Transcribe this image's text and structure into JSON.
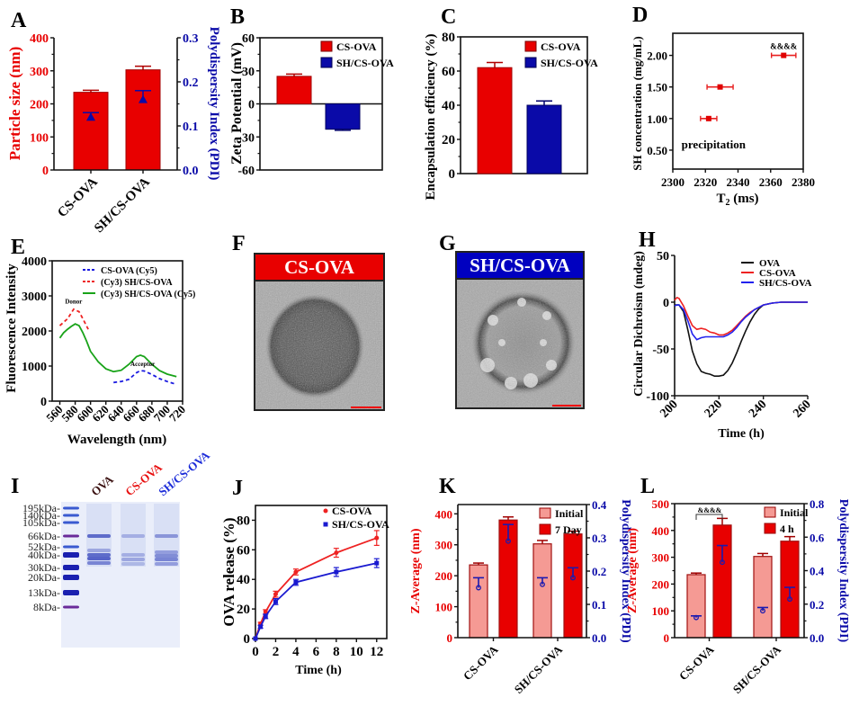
{
  "figure": {
    "panel_letters": [
      "A",
      "B",
      "C",
      "D",
      "E",
      "F",
      "G",
      "H",
      "I",
      "J",
      "K",
      "L"
    ]
  },
  "colors": {
    "red": "#e80000",
    "blue": "#0a0aa8",
    "light_red": "#f59a94",
    "dark_red_edge": "#9c0a0a",
    "green": "#19a319"
  },
  "chart_data": [
    {
      "id": "A",
      "type": "bar",
      "categories": [
        "CS-OVA",
        "SH/CS-OVA"
      ],
      "series": [
        {
          "name": "Particle size (nm)",
          "axis": "left",
          "values": [
            235,
            303
          ],
          "errors": [
            6,
            11
          ],
          "color": "#e80000"
        },
        {
          "name": "PDI",
          "axis": "right",
          "type": "marker",
          "values": [
            0.12,
            0.16
          ],
          "errors": [
            0.01,
            0.02
          ],
          "color": "#0a0aa8"
        }
      ],
      "ylabel": "Particle size (nm)",
      "ylim": [
        0,
        400
      ],
      "yticks": [
        0,
        100,
        200,
        300,
        400
      ],
      "y2label": "Polydispersity Index (PDI)",
      "y2lim": [
        0,
        0.3
      ],
      "y2ticks": [
        "0.0",
        "0.1",
        "0.2",
        "0.3"
      ]
    },
    {
      "id": "B",
      "type": "bar",
      "categories": [
        "CS-OVA",
        "SH/CS-OVA"
      ],
      "values": [
        25,
        -23
      ],
      "errors": [
        2,
        1
      ],
      "colors": [
        "#e80000",
        "#0a0aa8"
      ],
      "legend": [
        "CS-OVA",
        "SH/CS-OVA"
      ],
      "legend_position": "top-right",
      "ylabel": "Zeta Potential (mV)",
      "ylim": [
        -60,
        60
      ],
      "yticks": [
        -60,
        -30,
        0,
        30,
        60
      ]
    },
    {
      "id": "C",
      "type": "bar",
      "categories": [
        "CS-OVA",
        "SH/CS-OVA"
      ],
      "values": [
        62,
        40
      ],
      "errors": [
        3,
        2.5
      ],
      "colors": [
        "#e80000",
        "#0a0aa8"
      ],
      "legend": [
        "CS-OVA",
        "SH/CS-OVA"
      ],
      "legend_position": "top-right",
      "ylabel": "Encapsulation efficiency (%)",
      "ylim": [
        0,
        80
      ],
      "yticks": [
        0,
        20,
        40,
        60,
        80
      ]
    },
    {
      "id": "D",
      "type": "scatter",
      "points": [
        {
          "x": 2322,
          "y": 1.0,
          "xerr": 5
        },
        {
          "x": 2329,
          "y": 1.5,
          "xerr": 8
        },
        {
          "x": 2368,
          "y": 2.0,
          "xerr": 7.5
        }
      ],
      "annotations": [
        {
          "text": "&&&&",
          "x": 2368,
          "y": 2.1
        },
        {
          "text": "precipitation",
          "x": 2325,
          "y": 0.53
        }
      ],
      "xlabel": "T2 (ms)",
      "ylabel": "SH concentration (mg/mL)",
      "xlim": [
        2300,
        2380
      ],
      "xticks": [
        2300,
        2320,
        2340,
        2360,
        2380
      ],
      "ylim": [
        0.2,
        2.35
      ],
      "yticks": [
        "0.50",
        "1.00",
        "1.50",
        "2.00"
      ]
    },
    {
      "id": "E",
      "type": "line",
      "series": [
        {
          "name": "CS-OVA (Cy5)",
          "style": "dashed",
          "color": "#1a1ae0",
          "x": [
            630,
            640,
            650,
            660,
            665,
            670,
            680,
            690,
            700,
            710
          ],
          "y": [
            530,
            560,
            620,
            810,
            870,
            860,
            760,
            640,
            560,
            490
          ]
        },
        {
          "name": "(Cy3) SH/CS-OVA",
          "style": "dashed",
          "color": "#ee2222",
          "x": [
            560,
            570,
            578,
            585,
            590,
            597
          ],
          "y": [
            2150,
            2350,
            2620,
            2550,
            2350,
            2050
          ]
        },
        {
          "name": "(Cy3) SH/CS-OVA (Cy5)",
          "style": "solid",
          "color": "#19a319",
          "x": [
            560,
            565,
            570,
            575,
            580,
            585,
            590,
            595,
            600,
            610,
            620,
            630,
            640,
            650,
            660,
            665,
            670,
            680,
            690,
            700,
            712
          ],
          "y": [
            1800,
            1950,
            2050,
            2130,
            2200,
            2150,
            1950,
            1700,
            1420,
            1120,
            920,
            840,
            880,
            1050,
            1270,
            1310,
            1270,
            1050,
            870,
            770,
            700
          ]
        }
      ],
      "annotations": [
        {
          "text": "Donor",
          "x": 578,
          "y": 2780
        },
        {
          "text": "Acceptor",
          "x": 668,
          "y": 1000
        }
      ],
      "legend_position": "top-right",
      "xlabel": "Wavelength (nm)",
      "ylabel": "Fluorescence Intensity",
      "xlim": [
        550,
        720
      ],
      "xticks": [
        560,
        580,
        600,
        620,
        640,
        660,
        680,
        700,
        720
      ],
      "ylim": [
        0,
        4000
      ],
      "yticks": [
        0,
        1000,
        2000,
        3000,
        4000
      ]
    },
    {
      "id": "H",
      "type": "line",
      "series": [
        {
          "name": "OVA",
          "color": "#111111",
          "x": [
            200,
            202,
            204,
            206,
            208,
            210,
            212,
            214,
            216,
            218,
            220,
            222,
            224,
            226,
            228,
            230,
            232,
            234,
            236,
            238,
            240,
            244,
            248,
            252,
            256,
            260
          ],
          "y": [
            -3,
            -3,
            -10,
            -30,
            -52,
            -66,
            -74,
            -76,
            -77,
            -79,
            -79,
            -78,
            -73,
            -65,
            -54,
            -42,
            -31,
            -21,
            -13,
            -7,
            -3,
            -1,
            0,
            0,
            0,
            0
          ]
        },
        {
          "name": "CS-OVA",
          "color": "#ee2222",
          "x": [
            200,
            201,
            202,
            204,
            206,
            208,
            210,
            212,
            214,
            216,
            218,
            220,
            222,
            224,
            226,
            228,
            230,
            232,
            234,
            236,
            240,
            244,
            248,
            252,
            256,
            260
          ],
          "y": [
            2,
            5,
            4,
            -4,
            -15,
            -25,
            -29,
            -28,
            -29,
            -32,
            -33,
            -35,
            -35,
            -33,
            -30,
            -25,
            -20,
            -15,
            -11,
            -8,
            -3,
            -1,
            0,
            0,
            0,
            0
          ]
        },
        {
          "name": "SH/CS-OVA",
          "color": "#2222ee",
          "x": [
            200,
            201,
            202,
            204,
            206,
            208,
            210,
            212,
            214,
            216,
            218,
            220,
            222,
            224,
            226,
            228,
            230,
            232,
            234,
            236,
            240,
            244,
            248,
            252,
            256,
            260
          ],
          "y": [
            -4,
            -3,
            -3,
            -8,
            -20,
            -34,
            -40,
            -38,
            -37,
            -37,
            -37,
            -37,
            -37,
            -35,
            -32,
            -27,
            -21,
            -16,
            -12,
            -8,
            -3,
            -1,
            0,
            0,
            0,
            0
          ]
        }
      ],
      "legend_position": "top-right",
      "xlabel": "Time (h)",
      "ylabel": "Circular Dichroism (mdeg)",
      "xlim": [
        200,
        260
      ],
      "xticks": [
        200,
        220,
        240,
        260
      ],
      "ylim": [
        -100,
        50
      ],
      "yticks": [
        -100,
        -50,
        0,
        50
      ]
    },
    {
      "id": "J",
      "type": "line",
      "series": [
        {
          "name": "CS-OVA",
          "color": "#ee2222",
          "marker": "circle",
          "x": [
            0,
            0.5,
            1,
            2,
            4,
            8,
            12
          ],
          "y": [
            0,
            10,
            18,
            30,
            45,
            58,
            68
          ],
          "errors": [
            0,
            1,
            1.5,
            2,
            2,
            3,
            5
          ]
        },
        {
          "name": "SH/CS-OVA",
          "color": "#1a1ad0",
          "marker": "square",
          "x": [
            0,
            0.5,
            1,
            2,
            4,
            8,
            12
          ],
          "y": [
            0,
            8,
            15,
            25,
            38,
            45,
            51
          ],
          "errors": [
            0,
            1,
            1.5,
            2,
            2,
            3,
            3
          ]
        }
      ],
      "legend_position": "top-right",
      "xlabel": "Time (h)",
      "ylabel": "OVA release (%)",
      "xlim": [
        0,
        13
      ],
      "xticks": [
        0,
        2,
        4,
        6,
        8,
        10,
        12
      ],
      "ylim": [
        0,
        90
      ],
      "yticks": [
        0,
        20,
        40,
        60,
        80
      ]
    },
    {
      "id": "K",
      "type": "bar",
      "categories": [
        "CS-OVA",
        "SH/CS-OVA"
      ],
      "series": [
        {
          "name": "Initial",
          "values": [
            235,
            303
          ],
          "errors": [
            6,
            11
          ],
          "color": "#f59a94"
        },
        {
          "name": "7 Day",
          "values": [
            380,
            335
          ],
          "errors": [
            10,
            9
          ],
          "color": "#e80000"
        }
      ],
      "pdi": {
        "values": [
          [
            0.15,
            0.29
          ],
          [
            0.16,
            0.18
          ]
        ],
        "errors": [
          [
            0.03,
            0.05
          ],
          [
            0.02,
            0.03
          ]
        ]
      },
      "legend_position": "top-right",
      "ylabel": "Z-Average (nm)",
      "ylim": [
        0,
        430
      ],
      "yticks": [
        0,
        100,
        200,
        300,
        400
      ],
      "y2label": "Polydispersity Index (PDI)",
      "y2lim": [
        0,
        0.4
      ],
      "y2ticks": [
        "0.0",
        "0.1",
        "0.2",
        "0.3",
        "0.4"
      ]
    },
    {
      "id": "L",
      "type": "bar",
      "categories": [
        "CS-OVA",
        "SH/CS-OVA"
      ],
      "series": [
        {
          "name": "Initial",
          "values": [
            235,
            303
          ],
          "errors": [
            6,
            11
          ],
          "color": "#f59a94"
        },
        {
          "name": "4 h",
          "values": [
            420,
            360
          ],
          "errors": [
            25,
            17
          ],
          "color": "#e80000"
        }
      ],
      "pdi": {
        "values": [
          [
            0.12,
            0.45
          ],
          [
            0.16,
            0.23
          ]
        ],
        "errors": [
          [
            0.01,
            0.1
          ],
          [
            0.02,
            0.07
          ]
        ]
      },
      "annotations": [
        {
          "text": "&&&&",
          "between": [
            "CS-OVA Initial",
            "CS-OVA 4 h"
          ]
        }
      ],
      "legend_position": "top-right",
      "ylabel": "Z-Average (nm)",
      "ylim": [
        0,
        500
      ],
      "yticks": [
        0,
        100,
        200,
        300,
        400,
        500
      ],
      "y2label": "Polydispersity Index (PDI)",
      "y2lim": [
        0,
        0.8
      ],
      "y2ticks": [
        "0.0",
        "0.2",
        "0.4",
        "0.6",
        "0.8"
      ]
    }
  ],
  "tem": {
    "F": {
      "header": "CS-OVA",
      "header_color": "#e80000"
    },
    "G": {
      "header": "SH/CS-OVA",
      "header_color": "#0000c0"
    }
  },
  "gel": {
    "lanes": [
      {
        "label": "OVA",
        "color": "#3a1010"
      },
      {
        "label": "CS-OVA",
        "color": "#e81010"
      },
      {
        "label": "SH/CS-OVA",
        "color": "#1a2ad8"
      }
    ],
    "ladder": [
      "195kDa-",
      "140kDa-",
      "105kDa-",
      "66kDa-",
      "52kDa-",
      "40kDa-",
      "30kDa-",
      "20kDa-",
      "13kDa-",
      "8kDa-"
    ]
  }
}
